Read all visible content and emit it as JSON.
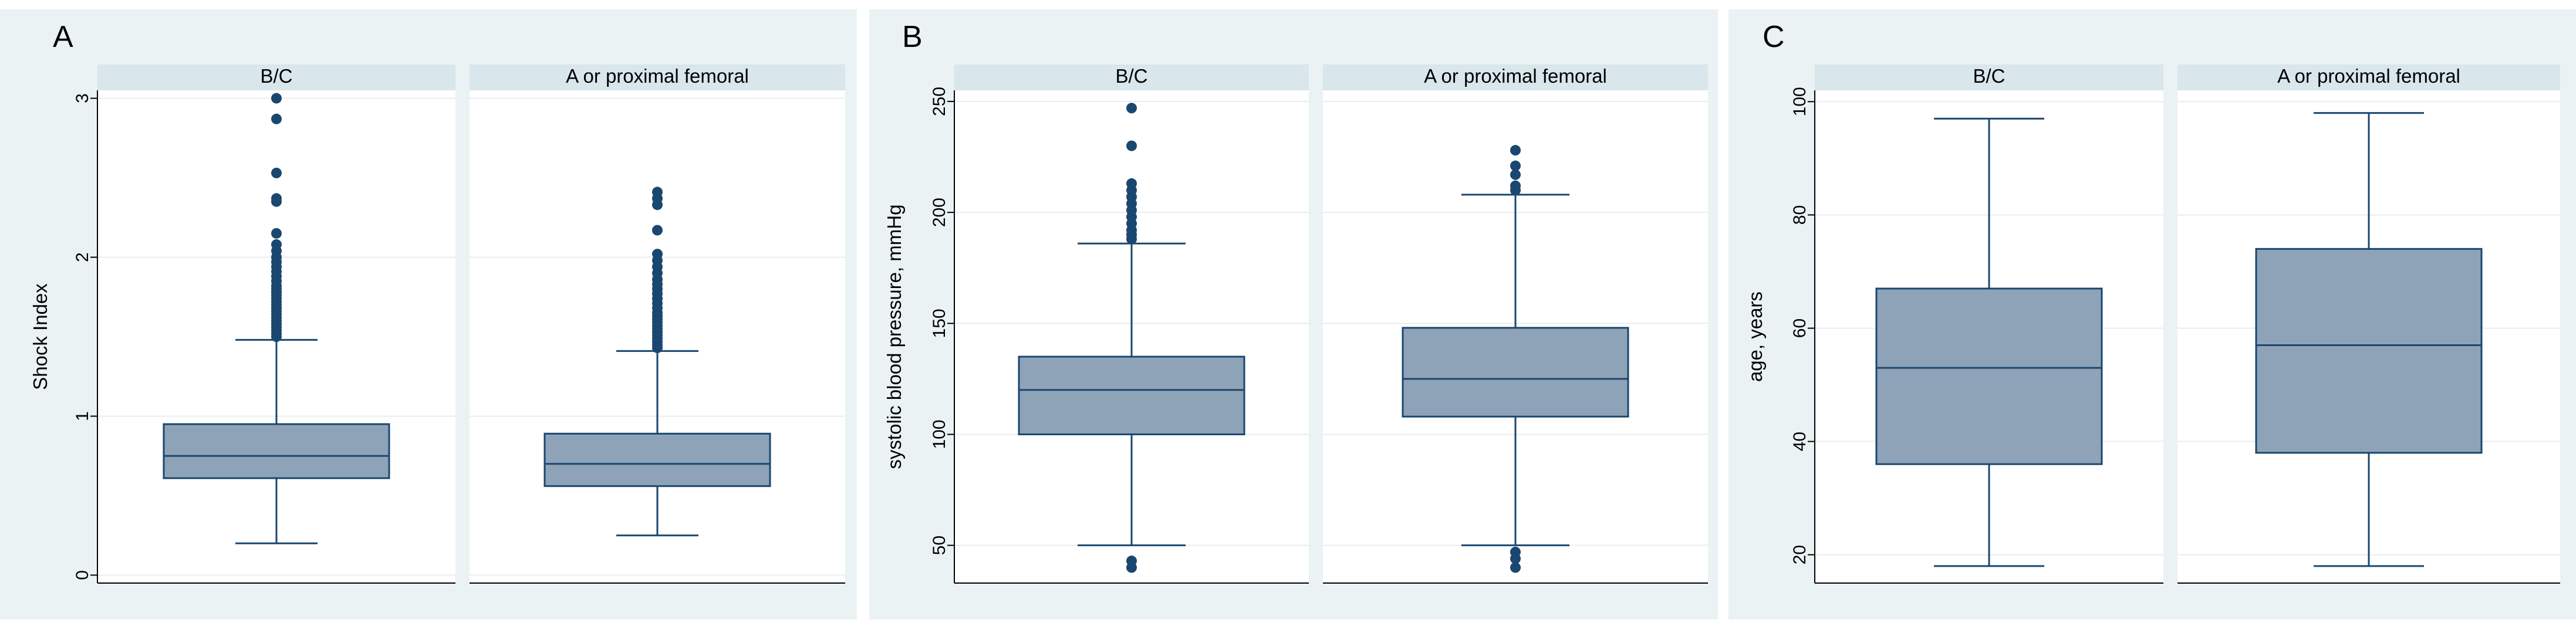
{
  "chart_data": [
    {
      "panel_label": "A",
      "type": "box",
      "ylabel": "Shock Index",
      "xlabel": "",
      "ylim": [
        -0.05,
        3.05
      ],
      "yticks": [
        0,
        1,
        2,
        3
      ],
      "ytick_labels": [
        "0",
        "1",
        "2",
        "3"
      ],
      "grid": true,
      "categories": [
        "B/C",
        "A or proximal femoral"
      ],
      "boxes": [
        {
          "category": "B/C",
          "whisker_low": 0.2,
          "q1": 0.61,
          "median": 0.75,
          "q3": 0.95,
          "whisker_high": 1.48,
          "outliers": [
            1.5,
            1.52,
            1.54,
            1.56,
            1.58,
            1.6,
            1.62,
            1.64,
            1.66,
            1.68,
            1.7,
            1.72,
            1.74,
            1.76,
            1.78,
            1.8,
            1.82,
            1.85,
            1.88,
            1.91,
            1.94,
            1.97,
            2.0,
            2.04,
            2.08,
            2.15,
            2.35,
            2.37,
            2.53,
            2.87,
            3.0
          ]
        },
        {
          "category": "A or proximal femoral",
          "whisker_low": 0.25,
          "q1": 0.56,
          "median": 0.7,
          "q3": 0.89,
          "whisker_high": 1.41,
          "outliers": [
            1.43,
            1.45,
            1.47,
            1.49,
            1.51,
            1.53,
            1.55,
            1.57,
            1.59,
            1.61,
            1.63,
            1.65,
            1.68,
            1.71,
            1.74,
            1.77,
            1.8,
            1.83,
            1.86,
            1.9,
            1.94,
            1.98,
            2.02,
            2.17,
            2.33,
            2.37,
            2.41
          ]
        }
      ]
    },
    {
      "panel_label": "B",
      "type": "box",
      "ylabel": "systolic blood pressure, mmHg",
      "xlabel": "",
      "ylim": [
        33,
        255
      ],
      "yticks": [
        50,
        100,
        150,
        200,
        250
      ],
      "ytick_labels": [
        "50",
        "100",
        "150",
        "200",
        "250"
      ],
      "grid": true,
      "categories": [
        "B/C",
        "A or proximal femoral"
      ],
      "boxes": [
        {
          "category": "B/C",
          "whisker_low": 50,
          "q1": 100,
          "median": 120,
          "q3": 135,
          "whisker_high": 186,
          "outliers": [
            40,
            43,
            188,
            190,
            192,
            195,
            198,
            201,
            204,
            207,
            210,
            213,
            230,
            247
          ]
        },
        {
          "category": "A or proximal femoral",
          "whisker_low": 50,
          "q1": 108,
          "median": 125,
          "q3": 148,
          "whisker_high": 208,
          "outliers": [
            40,
            44,
            47,
            210,
            212,
            217,
            221,
            228
          ]
        }
      ]
    },
    {
      "panel_label": "C",
      "type": "box",
      "ylabel": "age, years",
      "xlabel": "",
      "ylim": [
        15,
        102
      ],
      "yticks": [
        20,
        40,
        60,
        80,
        100
      ],
      "ytick_labels": [
        "20",
        "40",
        "60",
        "80",
        "100"
      ],
      "grid": true,
      "categories": [
        "B/C",
        "A or proximal femoral"
      ],
      "boxes": [
        {
          "category": "B/C",
          "whisker_low": 18,
          "q1": 36,
          "median": 53,
          "q3": 67,
          "whisker_high": 97,
          "outliers": []
        },
        {
          "category": "A or proximal femoral",
          "whisker_low": 18,
          "q1": 38,
          "median": 57,
          "q3": 74,
          "whisker_high": 98,
          "outliers": []
        }
      ]
    }
  ],
  "colors": {
    "panel_background": "#eaf2f3",
    "plot_background": "#ffffff",
    "strip_background": "#d9e6eb",
    "box_fill": "#8fa3b8",
    "box_stroke": "#1a476f",
    "whisker": "#1a476f",
    "outlier": "#1a476f",
    "grid": "#e8edef",
    "axis": "#000000",
    "text": "#000000"
  }
}
